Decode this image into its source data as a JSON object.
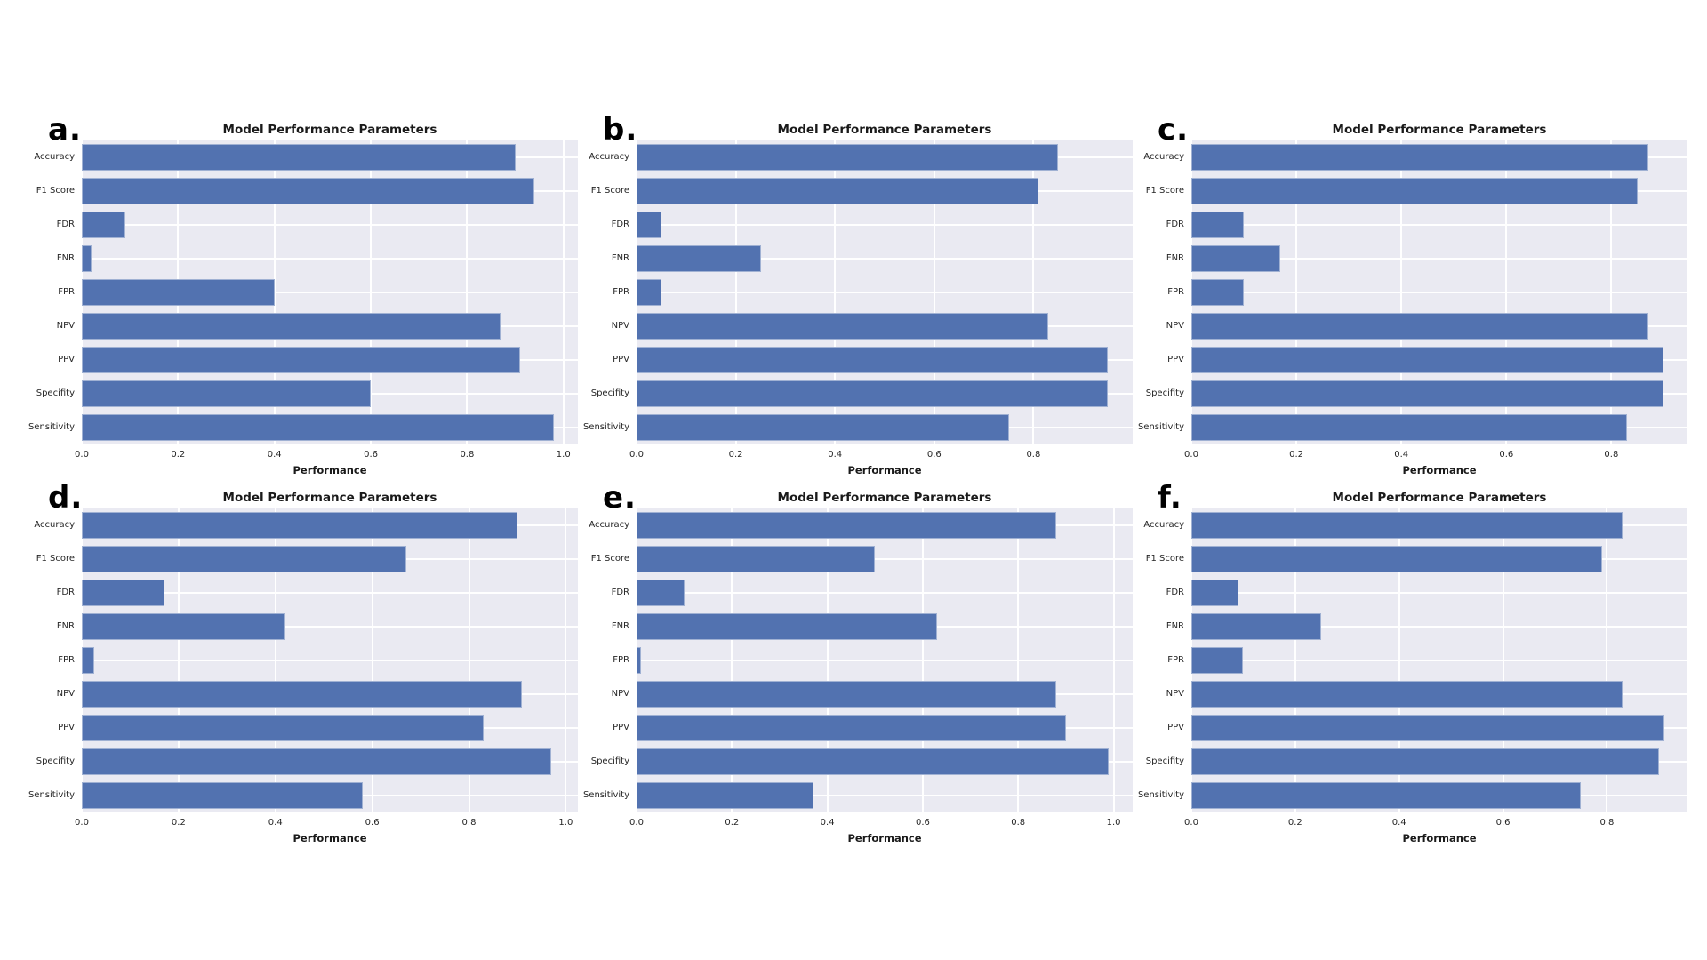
{
  "figure": {
    "title_repeated": "Model Performance Parameters",
    "xlabel_repeated": "Performance",
    "panel_letters": [
      "a.",
      "b.",
      "c.",
      "d.",
      "e.",
      "f."
    ]
  },
  "colors": {
    "bar": "#5272b0",
    "plot_background": "#eaeaf2",
    "gridline": "#ffffff",
    "text": "#262626",
    "page_background": "#ffffff"
  },
  "chart_data": [
    {
      "type": "bar",
      "orientation": "horizontal",
      "panel": "a.",
      "title": "Model Performance Parameters",
      "xlabel": "Performance",
      "categories": [
        "Accuracy",
        "F1 Score",
        "FDR",
        "FNR",
        "FPR",
        "NPV",
        "PPV",
        "Specifity",
        "Sensitivity"
      ],
      "values": [
        0.9,
        0.94,
        0.09,
        0.02,
        0.4,
        0.87,
        0.91,
        0.6,
        0.98
      ],
      "xticks": [
        0.0,
        0.2,
        0.4,
        0.6,
        0.8,
        1.0
      ],
      "xtick_labels": [
        "0.0",
        "0.2",
        "0.4",
        "0.6",
        "0.8",
        "1.0"
      ],
      "xlim": [
        0,
        1.03
      ],
      "grid": true,
      "legend": false
    },
    {
      "type": "bar",
      "orientation": "horizontal",
      "panel": "b.",
      "title": "Model Performance Parameters",
      "xlabel": "Performance",
      "categories": [
        "Accuracy",
        "F1 Score",
        "FDR",
        "FNR",
        "FPR",
        "NPV",
        "PPV",
        "Specifity",
        "Sensitivity"
      ],
      "values": [
        0.85,
        0.81,
        0.05,
        0.25,
        0.05,
        0.83,
        0.95,
        0.95,
        0.75
      ],
      "xticks": [
        0.0,
        0.2,
        0.4,
        0.6,
        0.8
      ],
      "xtick_labels": [
        "0.0",
        "0.2",
        "0.4",
        "0.6",
        "0.8"
      ],
      "xlim": [
        0,
        1.0
      ],
      "grid": true,
      "legend": false
    },
    {
      "type": "bar",
      "orientation": "horizontal",
      "panel": "c.",
      "title": "Model Performance Parameters",
      "xlabel": "Performance",
      "categories": [
        "Accuracy",
        "F1 Score",
        "FDR",
        "FNR",
        "FPR",
        "NPV",
        "PPV",
        "Specifity",
        "Sensitivity"
      ],
      "values": [
        0.87,
        0.85,
        0.1,
        0.17,
        0.1,
        0.87,
        0.9,
        0.9,
        0.83
      ],
      "xticks": [
        0.0,
        0.2,
        0.4,
        0.6,
        0.8
      ],
      "xtick_labels": [
        "0.0",
        "0.2",
        "0.4",
        "0.6",
        "0.8"
      ],
      "xlim": [
        0,
        0.945
      ],
      "grid": true,
      "legend": false
    },
    {
      "type": "bar",
      "orientation": "horizontal",
      "panel": "d.",
      "title": "Model Performance Parameters",
      "xlabel": "Performance",
      "categories": [
        "Accuracy",
        "F1 Score",
        "FDR",
        "FNR",
        "FPR",
        "NPV",
        "PPV",
        "Specifity",
        "Sensitivity"
      ],
      "values": [
        0.9,
        0.67,
        0.17,
        0.42,
        0.025,
        0.91,
        0.83,
        0.97,
        0.58
      ],
      "xticks": [
        0.0,
        0.2,
        0.4,
        0.6,
        0.8,
        1.0
      ],
      "xtick_labels": [
        "0.0",
        "0.2",
        "0.4",
        "0.6",
        "0.8",
        "1.0"
      ],
      "xlim": [
        0,
        1.025
      ],
      "grid": true,
      "legend": false
    },
    {
      "type": "bar",
      "orientation": "horizontal",
      "panel": "e.",
      "title": "Model Performance Parameters",
      "xlabel": "Performance",
      "categories": [
        "Accuracy",
        "F1 Score",
        "FDR",
        "FNR",
        "FPR",
        "NPV",
        "PPV",
        "Specifity",
        "Sensitivity"
      ],
      "values": [
        0.88,
        0.5,
        0.1,
        0.63,
        0.01,
        0.88,
        0.9,
        0.99,
        0.37
      ],
      "xticks": [
        0.0,
        0.2,
        0.4,
        0.6,
        0.8,
        1.0
      ],
      "xtick_labels": [
        "0.0",
        "0.2",
        "0.4",
        "0.6",
        "0.8",
        "1.0"
      ],
      "xlim": [
        0,
        1.04
      ],
      "grid": true,
      "legend": false
    },
    {
      "type": "bar",
      "orientation": "horizontal",
      "panel": "f.",
      "title": "Model Performance Parameters",
      "xlabel": "Performance",
      "categories": [
        "Accuracy",
        "F1 Score",
        "FDR",
        "FNR",
        "FPR",
        "NPV",
        "PPV",
        "Specifity",
        "Sensitivity"
      ],
      "values": [
        0.83,
        0.79,
        0.09,
        0.25,
        0.1,
        0.83,
        0.91,
        0.9,
        0.75
      ],
      "xticks": [
        0.0,
        0.2,
        0.4,
        0.6,
        0.8
      ],
      "xtick_labels": [
        "0.0",
        "0.2",
        "0.4",
        "0.6",
        "0.8"
      ],
      "xlim": [
        0,
        0.955
      ],
      "grid": true,
      "legend": false
    }
  ]
}
